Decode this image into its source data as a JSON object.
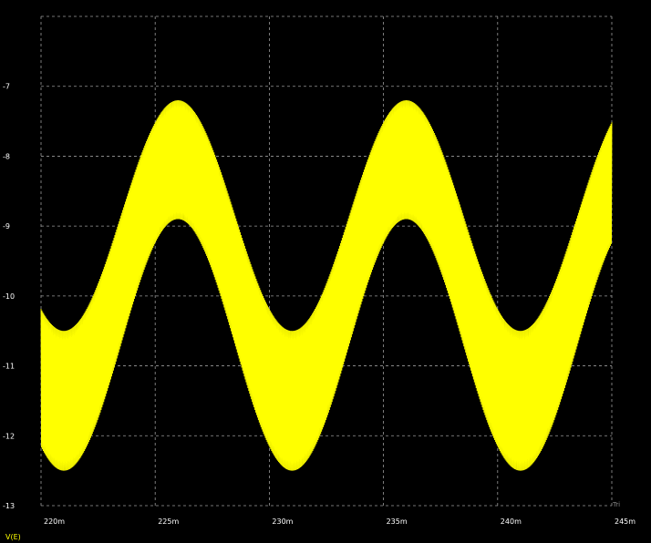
{
  "chart_data": {
    "type": "line",
    "title": "",
    "xlabel": "",
    "ylabel": "",
    "x_unit_label": "Tri",
    "x_ticks": [
      "220m",
      "225m",
      "230m",
      "235m",
      "240m",
      "245m"
    ],
    "y_ticks": [
      "-7",
      "-8",
      "-9",
      "-10",
      "-11",
      "-12",
      "-13"
    ],
    "xlim": [
      0.22,
      0.245
    ],
    "ylim": [
      -13,
      -6
    ],
    "grid": true,
    "legend": "bottom-left",
    "series": [
      {
        "name": "V(E)",
        "color": "#ffff00",
        "envelope_description_values": {
          "upper_peaks": [
            [
              0.226,
              -7.2
            ],
            [
              0.236,
              -7.2
            ]
          ],
          "upper_troughs": [
            [
              0.221,
              -10.5
            ],
            [
              0.231,
              -10.5
            ],
            [
              0.241,
              -10.5
            ]
          ],
          "lower_peaks": [
            [
              0.226,
              -8.9
            ],
            [
              0.236,
              -8.9
            ]
          ],
          "lower_troughs": [
            [
              0.221,
              -12.5
            ],
            [
              0.231,
              -12.5
            ],
            [
              0.241,
              -12.5
            ]
          ]
        },
        "x_start": 0.22,
        "x_end": 0.245,
        "end_upper": -7.5,
        "end_lower": -9.3
      }
    ]
  },
  "colors": {
    "background": "#000000",
    "grid": "#9a9a9a",
    "trace": "#ffff00",
    "text": "#ffffff"
  }
}
